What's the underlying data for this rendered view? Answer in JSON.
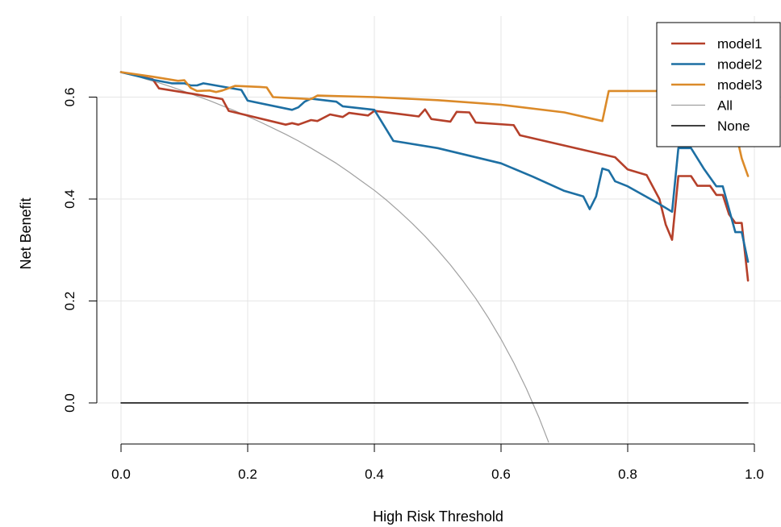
{
  "chart_data": {
    "type": "line",
    "title": "",
    "xlabel": "High Risk Threshold",
    "ylabel": "Net Benefit",
    "xlim": [
      0,
      1
    ],
    "ylim": [
      -0.08,
      0.7
    ],
    "xticks": [
      "0.0",
      "0.2",
      "0.4",
      "0.6",
      "0.8",
      "1.0"
    ],
    "xtick_values": [
      0,
      0.2,
      0.4,
      0.6,
      0.8,
      1.0
    ],
    "yticks": [
      "0.0",
      "0.2",
      "0.4",
      "0.6"
    ],
    "ytick_values": [
      0,
      0.2,
      0.4,
      0.6
    ],
    "grid": true,
    "legend_position": "top-right",
    "series": [
      {
        "name": "model1",
        "color": "#B5402A",
        "x": [
          0.0,
          0.05,
          0.06,
          0.12,
          0.16,
          0.17,
          0.26,
          0.27,
          0.28,
          0.3,
          0.31,
          0.33,
          0.35,
          0.36,
          0.39,
          0.4,
          0.47,
          0.48,
          0.49,
          0.52,
          0.53,
          0.55,
          0.56,
          0.62,
          0.63,
          0.78,
          0.79,
          0.8,
          0.83,
          0.85,
          0.86,
          0.87,
          0.88,
          0.9,
          0.91,
          0.93,
          0.94,
          0.95,
          0.96,
          0.97,
          0.98,
          0.99
        ],
        "y": [
          0.649,
          0.635,
          0.617,
          0.605,
          0.596,
          0.573,
          0.546,
          0.549,
          0.546,
          0.555,
          0.553,
          0.566,
          0.561,
          0.569,
          0.564,
          0.573,
          0.562,
          0.576,
          0.557,
          0.552,
          0.571,
          0.57,
          0.55,
          0.545,
          0.525,
          0.482,
          0.47,
          0.458,
          0.447,
          0.4,
          0.35,
          0.32,
          0.445,
          0.445,
          0.426,
          0.426,
          0.408,
          0.408,
          0.37,
          0.353,
          0.353,
          0.24
        ]
      },
      {
        "name": "model2",
        "color": "#1D6FA3",
        "x": [
          0.0,
          0.05,
          0.08,
          0.1,
          0.11,
          0.12,
          0.13,
          0.19,
          0.2,
          0.27,
          0.28,
          0.29,
          0.3,
          0.34,
          0.35,
          0.4,
          0.43,
          0.5,
          0.6,
          0.65,
          0.7,
          0.73,
          0.74,
          0.75,
          0.76,
          0.77,
          0.78,
          0.8,
          0.85,
          0.87,
          0.88,
          0.9,
          0.92,
          0.94,
          0.95,
          0.96,
          0.97,
          0.98,
          0.99
        ],
        "y": [
          0.649,
          0.634,
          0.627,
          0.627,
          0.623,
          0.623,
          0.627,
          0.614,
          0.593,
          0.575,
          0.58,
          0.591,
          0.597,
          0.591,
          0.582,
          0.575,
          0.514,
          0.5,
          0.47,
          0.444,
          0.416,
          0.405,
          0.38,
          0.405,
          0.46,
          0.456,
          0.435,
          0.425,
          0.39,
          0.375,
          0.5,
          0.5,
          0.46,
          0.425,
          0.425,
          0.38,
          0.335,
          0.335,
          0.277
        ]
      },
      {
        "name": "model3",
        "color": "#DB8A29",
        "x": [
          0.0,
          0.05,
          0.09,
          0.1,
          0.11,
          0.12,
          0.14,
          0.15,
          0.16,
          0.18,
          0.22,
          0.23,
          0.24,
          0.3,
          0.31,
          0.4,
          0.5,
          0.6,
          0.7,
          0.76,
          0.77,
          0.8,
          0.85,
          0.9,
          0.97,
          0.98,
          0.99
        ],
        "y": [
          0.649,
          0.64,
          0.632,
          0.633,
          0.618,
          0.612,
          0.613,
          0.61,
          0.613,
          0.622,
          0.62,
          0.619,
          0.6,
          0.596,
          0.603,
          0.6,
          0.594,
          0.585,
          0.57,
          0.553,
          0.612,
          0.612,
          0.612,
          0.612,
          0.535,
          0.48,
          0.445
        ]
      },
      {
        "name": "All",
        "color": "#A0A0A0",
        "x": [
          0.0,
          0.02,
          0.04,
          0.06,
          0.08,
          0.1,
          0.12,
          0.14,
          0.16,
          0.18,
          0.2,
          0.22,
          0.24,
          0.26,
          0.28,
          0.3,
          0.32,
          0.34,
          0.36,
          0.38,
          0.4,
          0.42,
          0.44,
          0.46,
          0.48,
          0.5,
          0.52,
          0.54,
          0.56,
          0.58,
          0.6,
          0.62,
          0.64,
          0.66,
          0.675
        ],
        "y": [
          0.65,
          0.643,
          0.635,
          0.628,
          0.62,
          0.611,
          0.602,
          0.593,
          0.583,
          0.573,
          0.562,
          0.551,
          0.539,
          0.527,
          0.514,
          0.5,
          0.485,
          0.47,
          0.453,
          0.435,
          0.417,
          0.397,
          0.375,
          0.352,
          0.327,
          0.3,
          0.271,
          0.239,
          0.205,
          0.167,
          0.125,
          0.079,
          0.028,
          -0.029,
          -0.077
        ]
      },
      {
        "name": "None",
        "color": "#000000",
        "x": [
          0.0,
          0.99
        ],
        "y": [
          0.0,
          0.0
        ]
      }
    ]
  }
}
